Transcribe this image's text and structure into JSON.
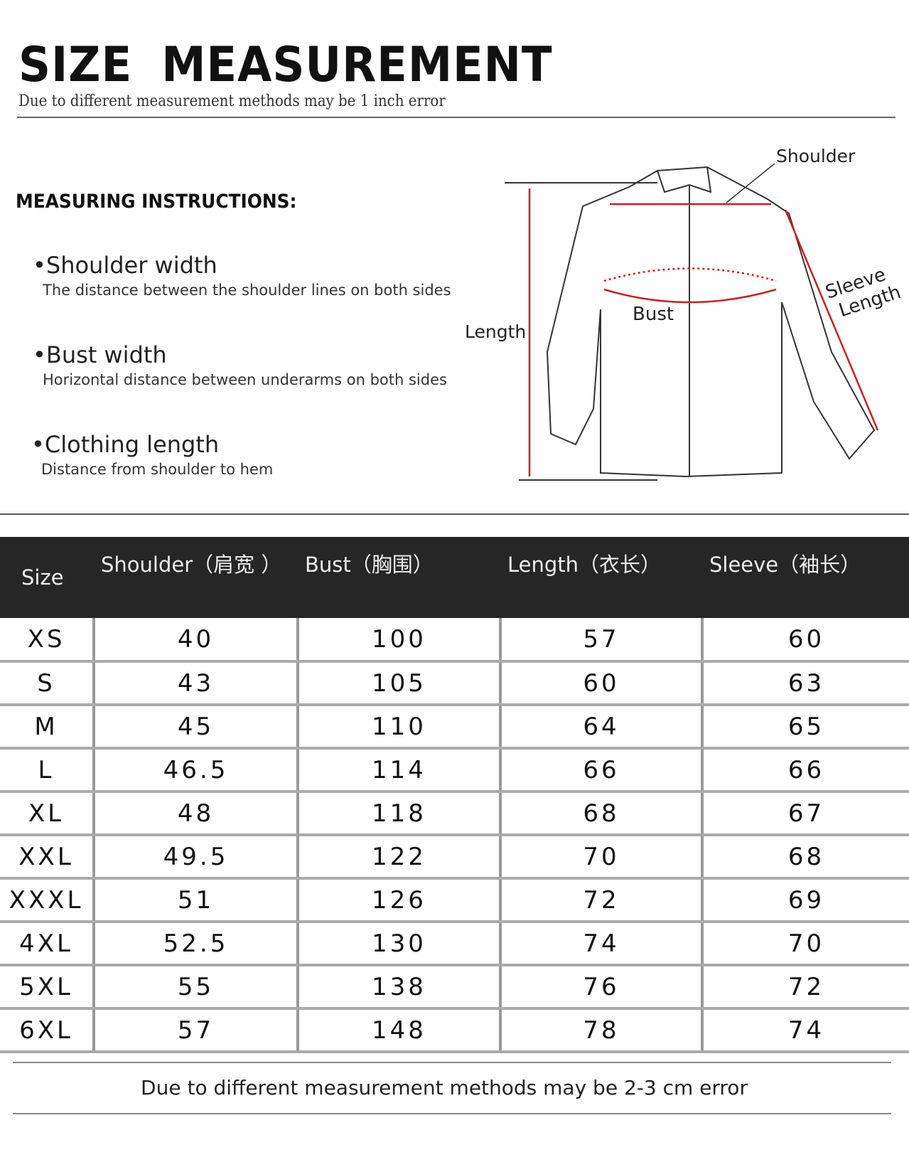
{
  "header": {
    "title": "SIZE  MEASUREMENT",
    "subtitle": "Due to different measurement methods may be 1 inch error"
  },
  "instructions": {
    "heading": "MEASURING INSTRUCTIONS:",
    "items": [
      {
        "label": "•Shoulder width",
        "desc": "The distance between the shoulder lines on both sides"
      },
      {
        "label": "•Bust width",
        "desc": "Horizontal distance between underarms on both sides"
      },
      {
        "label": "•Clothing length",
        "desc": "Distance from shoulder to hem"
      }
    ]
  },
  "diagram": {
    "shoulder": "Shoulder",
    "bust": "Bust",
    "length": "Length",
    "sleeve1": "Sleeve",
    "sleeve2": "Length",
    "accent": "#cc1f1f"
  },
  "table": {
    "headers": [
      "Size",
      "Shoulder（肩宽 ）",
      "Bust（胸围）",
      "Length（衣长）",
      "Sleeve（袖长）"
    ],
    "rows": [
      [
        "XS",
        "40",
        "100",
        "57",
        "60"
      ],
      [
        "S",
        "43",
        "105",
        "60",
        "63"
      ],
      [
        "M",
        "45",
        "110",
        "64",
        "65"
      ],
      [
        "L",
        "46.5",
        "114",
        "66",
        "66"
      ],
      [
        "XL",
        "48",
        "118",
        "68",
        "67"
      ],
      [
        "XXL",
        "49.5",
        "122",
        "70",
        "68"
      ],
      [
        "XXXL",
        "51",
        "126",
        "72",
        "69"
      ],
      [
        "4XL",
        "52.5",
        "130",
        "74",
        "70"
      ],
      [
        "5XL",
        "55",
        "138",
        "76",
        "72"
      ],
      [
        "6XL",
        "57",
        "148",
        "78",
        "74"
      ]
    ]
  },
  "footer": "Due to different measurement methods may be 2-3 cm error"
}
